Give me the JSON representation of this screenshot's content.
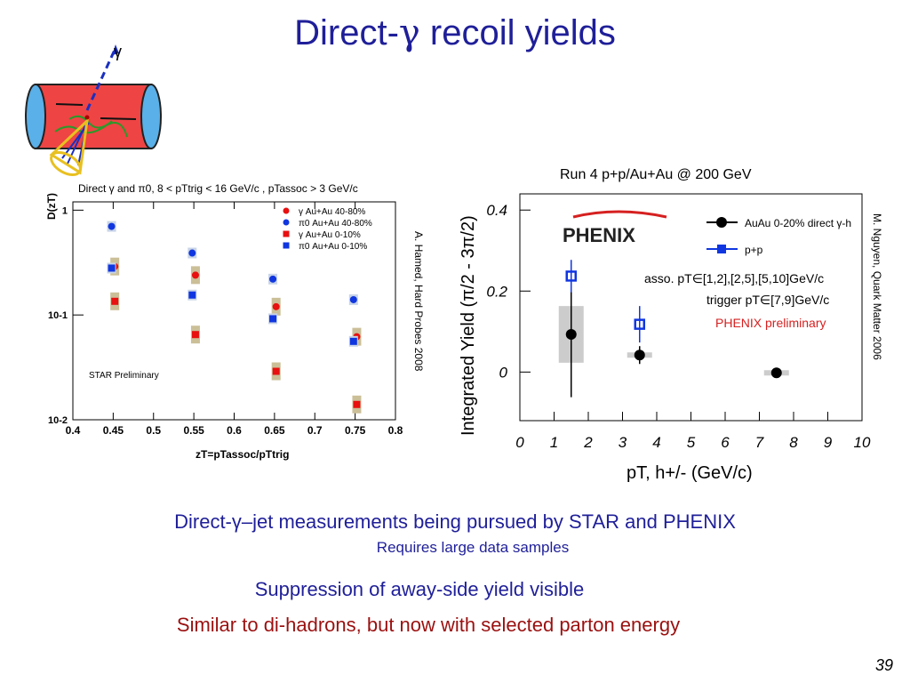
{
  "slide": {
    "title_prefix": "Direct-",
    "title_gamma": "γ",
    "title_suffix": " recoil yields",
    "gamma_label": "γ",
    "line1": "Direct-γ–jet measurements being pursued by STAR and PHENIX",
    "line2": "Requires large data samples",
    "line3": "Suppression of away-side yield visible",
    "line4": "Similar to di-hadrons, but now with selected parton energy",
    "page_number": "39",
    "ref_star": "A. Hamed, Hard Probes 2008",
    "ref_phenix": "M. Nguyen, Quark Matter 2006",
    "phenix_run": "Run 4 p+p/Au+Au @ 200 GeV"
  },
  "colors": {
    "title": "#1f1f99",
    "highlight": "#9b1010",
    "red": "#e81010",
    "blue": "#1036e0",
    "phenix_red": "#d62020"
  },
  "chart_data": [
    {
      "type": "scatter",
      "title": "Direct γ and π0, 8 < pTtrig < 16 GeV/c , pTassoc > 3 GeV/c",
      "xlabel": "zT=pTassoc/pTtrig",
      "ylabel": "D(zT)",
      "ylog": true,
      "xlim": [
        0.4,
        0.8
      ],
      "ylim": [
        0.01,
        1.2
      ],
      "x_ticks": [
        "0.4",
        "0.45",
        "0.5",
        "0.55",
        "0.6",
        "0.65",
        "0.7",
        "0.75",
        "0.8"
      ],
      "y_ticks": [
        "1",
        "10-1",
        "10-2"
      ],
      "annotation": "STAR Preliminary",
      "legend_position": "top-right",
      "series": [
        {
          "name": "γ  Au+Au 40-80%",
          "marker": "circle",
          "color": "red",
          "x": [
            0.452,
            0.552,
            0.652,
            0.752
          ],
          "y": [
            0.29,
            0.24,
            0.12,
            0.062
          ]
        },
        {
          "name": "π0  Au+Au 40-80%",
          "marker": "circle",
          "color": "blue",
          "x": [
            0.448,
            0.548,
            0.648,
            0.748
          ],
          "y": [
            0.7,
            0.39,
            0.22,
            0.14
          ]
        },
        {
          "name": "γ  Au+Au 0-10%",
          "marker": "square",
          "color": "red",
          "x": [
            0.452,
            0.552,
            0.652,
            0.752
          ],
          "y": [
            0.135,
            0.065,
            0.029,
            0.014
          ]
        },
        {
          "name": "π0  Au+Au 0-10%",
          "marker": "square",
          "color": "blue",
          "x": [
            0.448,
            0.548,
            0.648,
            0.748
          ],
          "y": [
            0.28,
            0.155,
            0.092,
            0.056
          ]
        }
      ]
    },
    {
      "type": "scatter",
      "title": "",
      "xlabel": "pT, h+/- (GeV/c)",
      "ylabel": "Integrated Yield (π/2 - 3π/2)",
      "xlim": [
        0,
        10
      ],
      "ylim": [
        -0.12,
        0.44
      ],
      "x_ticks": [
        "0",
        "1",
        "2",
        "3",
        "4",
        "5",
        "6",
        "7",
        "8",
        "9",
        "10"
      ],
      "y_ticks": [
        "0.4",
        "0.2",
        "0"
      ],
      "logo": "PHENIX",
      "annotations": [
        "asso. pT∈[1,2],[2,5],[5,10]GeV/c",
        "trigger pT∈[7,9]GeV/c",
        "PHENIX preliminary"
      ],
      "legend_position": "top-right",
      "series": [
        {
          "name": "AuAu 0-20% direct γ-h",
          "marker": "circle",
          "color": "black",
          "x": [
            1.5,
            3.5,
            7.5
          ],
          "y": [
            0.093,
            0.042,
            -0.002
          ],
          "err": [
            0.155,
            0.022,
            0.006
          ]
        },
        {
          "name": "p+p",
          "marker": "square-open",
          "color": "blue",
          "x": [
            1.5,
            3.5
          ],
          "y": [
            0.237,
            0.118
          ],
          "err": [
            0.04,
            0.045
          ]
        }
      ]
    }
  ]
}
